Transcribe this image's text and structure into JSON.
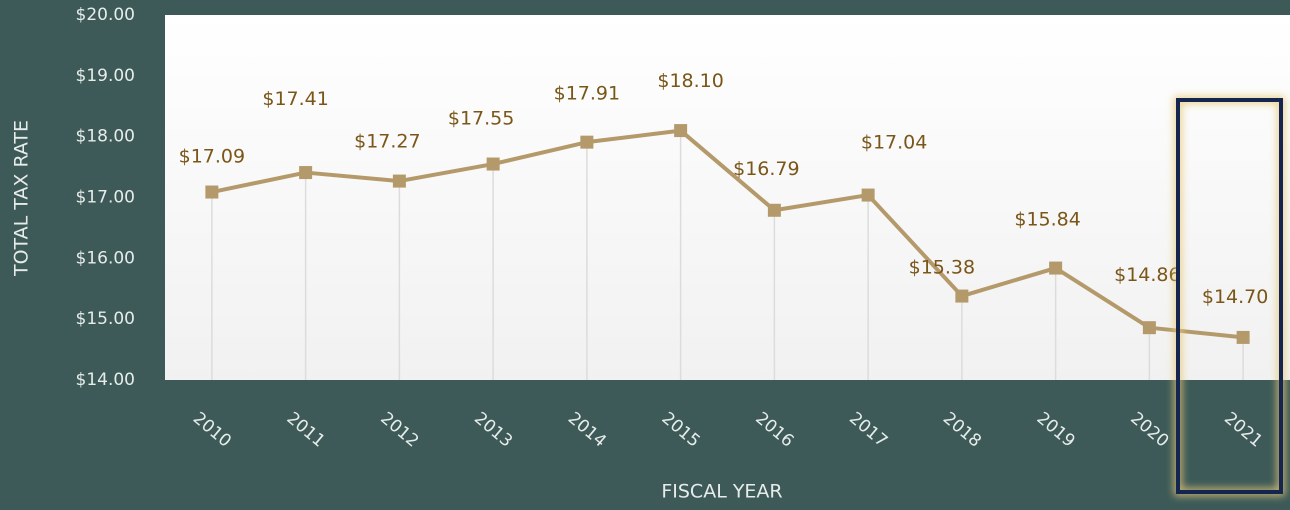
{
  "chart_data": {
    "type": "line",
    "x_label": "FISCAL YEAR",
    "y_label": "TOTAL TAX RATE",
    "categories": [
      "2010",
      "2011",
      "2012",
      "2013",
      "2014",
      "2015",
      "2016",
      "2017",
      "2018",
      "2019",
      "2020",
      "2021"
    ],
    "series": [
      {
        "color": "#b49a6a",
        "values": [
          17.09,
          17.41,
          17.27,
          17.55,
          17.91,
          18.1,
          16.79,
          17.04,
          15.38,
          15.84,
          14.86,
          14.7
        ],
        "value_labels": [
          "$17.09",
          "$17.41",
          "$17.27",
          "$17.55",
          "$17.91",
          "$18.10",
          "$16.79",
          "$17.04",
          "$15.38",
          "$15.84",
          "$14.86",
          "$14.70"
        ]
      }
    ],
    "ylim": [
      14,
      20
    ],
    "yticks": [
      {
        "value": 14,
        "label": "$14.00"
      },
      {
        "value": 15,
        "label": "$15.00"
      },
      {
        "value": 16,
        "label": "$16.00"
      },
      {
        "value": 17,
        "label": "$17.00"
      },
      {
        "value": 18,
        "label": "$18.00"
      },
      {
        "value": 19,
        "label": "$19.00"
      },
      {
        "value": 20,
        "label": "$20.00"
      }
    ]
  }
}
